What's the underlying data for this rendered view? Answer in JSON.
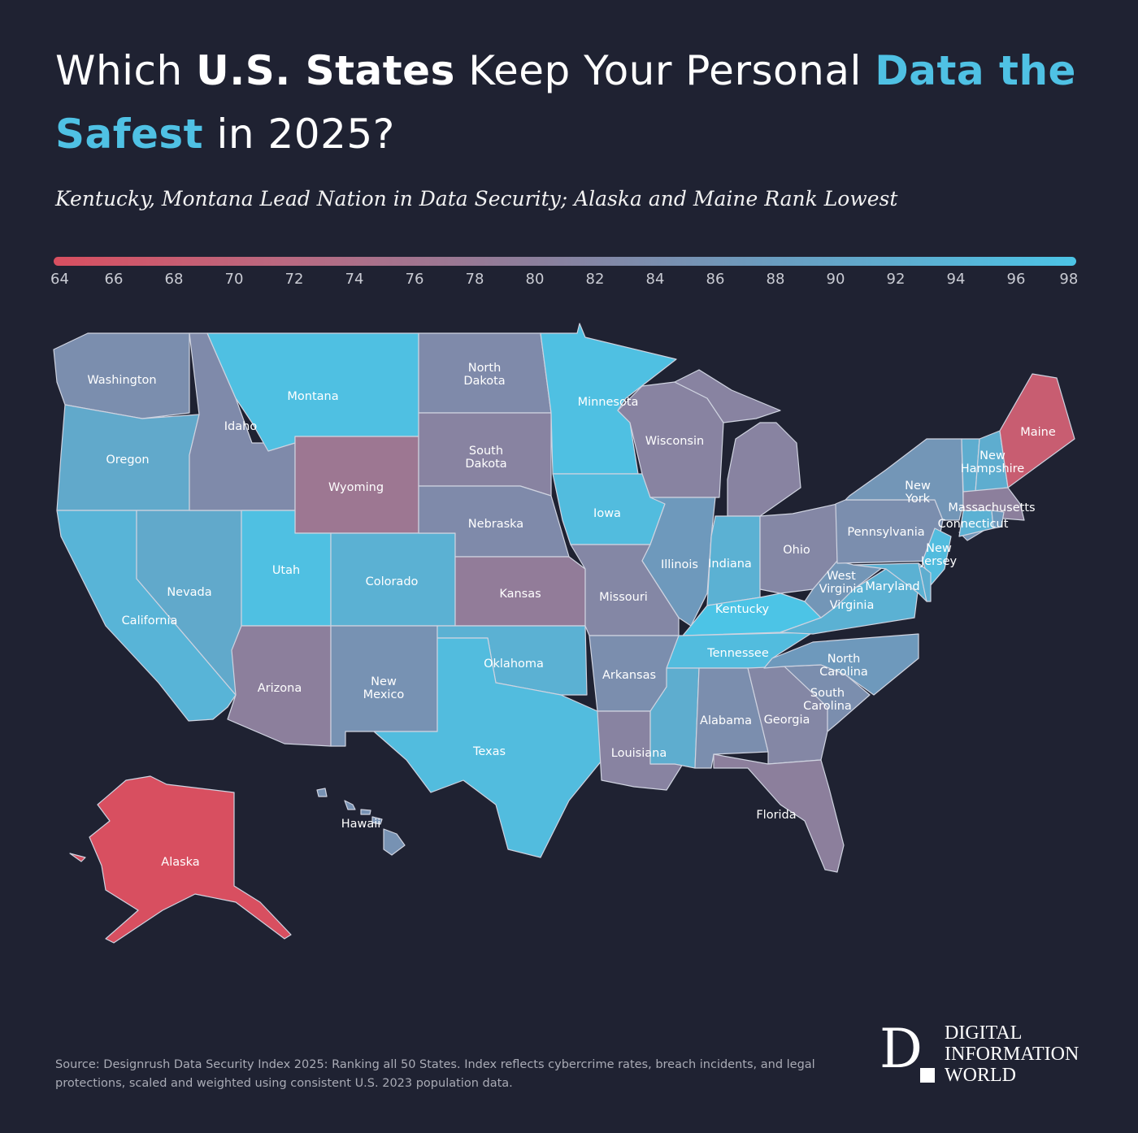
{
  "title": {
    "part1": "Which ",
    "part2": "U.S. States",
    "part3": " Keep Your Personal ",
    "part4": "Data the Safest",
    "part5": " in 2025?"
  },
  "subtitle": "Kentucky, Montana Lead Nation in Data Security; Alaska and Maine Rank Lowest",
  "colors": {
    "background": "#1f2232",
    "accent": "#4fc1e4",
    "scale": [
      "#d84f60",
      "#b86a82",
      "#8c7f9c",
      "#6a9dc0",
      "#4cc4e6"
    ],
    "scale_values": [
      64,
      72,
      80,
      88,
      98
    ]
  },
  "chart_data": {
    "type": "choropleth",
    "legend": {
      "min": 64,
      "max": 98,
      "ticks": [
        "64",
        "66",
        "68",
        "70",
        "72",
        "74",
        "76",
        "78",
        "80",
        "82",
        "84",
        "86",
        "88",
        "90",
        "92",
        "94",
        "96",
        "98"
      ],
      "placement": "top"
    },
    "states": [
      {
        "name": "Washington",
        "value": 84
      },
      {
        "name": "Oregon",
        "value": 91
      },
      {
        "name": "California",
        "value": 94
      },
      {
        "name": "Nevada",
        "value": 91
      },
      {
        "name": "Idaho",
        "value": 83
      },
      {
        "name": "Montana",
        "value": 97
      },
      {
        "name": "Wyoming",
        "value": 77
      },
      {
        "name": "Utah",
        "value": 97
      },
      {
        "name": "Colorado",
        "value": 93
      },
      {
        "name": "Arizona",
        "value": 80
      },
      {
        "name": "New Mexico",
        "value": 85
      },
      {
        "name": "North Dakota",
        "value": 83
      },
      {
        "name": "South Dakota",
        "value": 81
      },
      {
        "name": "Nebraska",
        "value": 83
      },
      {
        "name": "Kansas",
        "value": 79
      },
      {
        "name": "Oklahoma",
        "value": 93
      },
      {
        "name": "Texas",
        "value": 96
      },
      {
        "name": "Minnesota",
        "value": 97
      },
      {
        "name": "Iowa",
        "value": 96
      },
      {
        "name": "Missouri",
        "value": 82
      },
      {
        "name": "Arkansas",
        "value": 84
      },
      {
        "name": "Louisiana",
        "value": 81
      },
      {
        "name": "Wisconsin",
        "value": 81
      },
      {
        "name": "Illinois",
        "value": 87
      },
      {
        "name": "Michigan",
        "value": 81
      },
      {
        "name": "Indiana",
        "value": 93
      },
      {
        "name": "Ohio",
        "value": 82
      },
      {
        "name": "Kentucky",
        "value": 98
      },
      {
        "name": "Tennessee",
        "value": 96
      },
      {
        "name": "Mississippi",
        "value": 92
      },
      {
        "name": "Alabama",
        "value": 84
      },
      {
        "name": "Georgia",
        "value": 82
      },
      {
        "name": "Florida",
        "value": 80
      },
      {
        "name": "South Carolina",
        "value": 84
      },
      {
        "name": "North Carolina",
        "value": 87
      },
      {
        "name": "Virginia",
        "value": 93
      },
      {
        "name": "West Virginia",
        "value": 86
      },
      {
        "name": "Pennsylvania",
        "value": 84
      },
      {
        "name": "New York",
        "value": 86
      },
      {
        "name": "New Jersey",
        "value": 96
      },
      {
        "name": "Maryland",
        "value": 93
      },
      {
        "name": "Delaware",
        "value": 92
      },
      {
        "name": "Vermont",
        "value": 92
      },
      {
        "name": "New Hampshire",
        "value": 92
      },
      {
        "name": "Maine",
        "value": 68
      },
      {
        "name": "Massachusetts",
        "value": 80
      },
      {
        "name": "Connecticut",
        "value": 93
      },
      {
        "name": "Rhode Island",
        "value": 87
      },
      {
        "name": "Alaska",
        "value": 64
      },
      {
        "name": "Hawaii",
        "value": 85
      }
    ]
  },
  "source": "Source: Designrush Data Security Index 2025: Ranking all 50 States. Index reflects cybercrime rates, breach incidents, and legal protections, scaled and weighted using consistent U.S. 2023 population data.",
  "logo": {
    "letter": "D",
    "line1": "DIGITAL",
    "line2": "INFORMATION",
    "line3": "WORLD"
  }
}
